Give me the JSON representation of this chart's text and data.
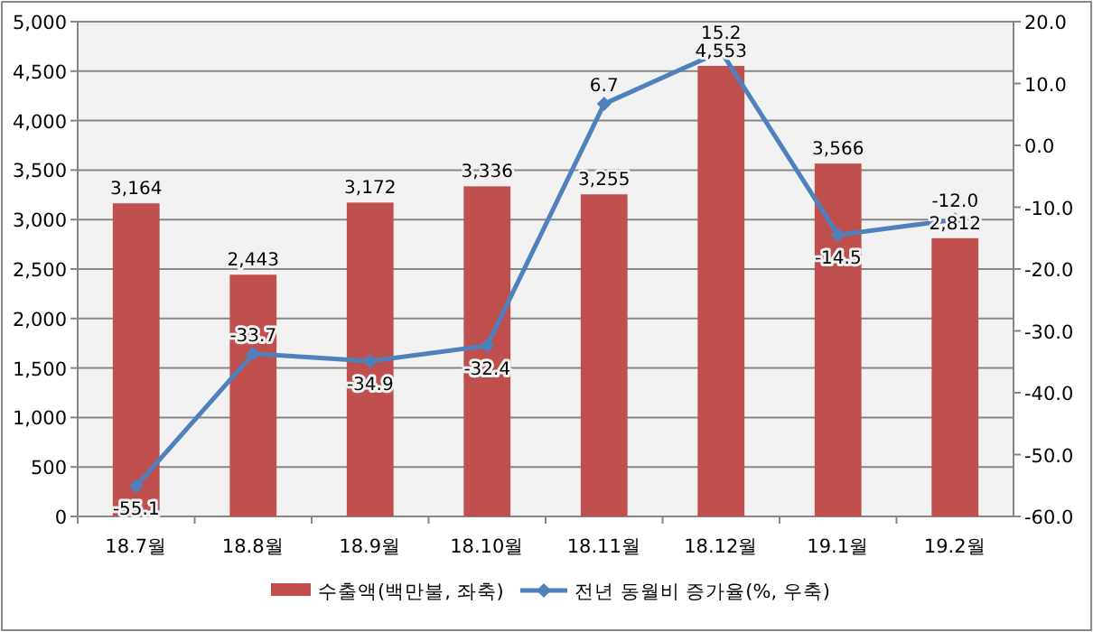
{
  "chart_data": {
    "type": "bar",
    "categories": [
      "18.7월",
      "18.8월",
      "18.9월",
      "18.10월",
      "18.11월",
      "18.12월",
      "19.1월",
      "19.2월"
    ],
    "series": [
      {
        "name": "수출액(백만불, 좌축)",
        "color": "#c0504d",
        "values": [
          3164,
          2443,
          3172,
          3336,
          3255,
          4553,
          3566,
          2812
        ],
        "value_labels": [
          "3,164",
          "2,443",
          "3,172",
          "3,336",
          "3,255",
          "4,553",
          "3,566",
          "2,812"
        ]
      },
      {
        "name": "전년 동월비 증가율(%, 우축)",
        "type": "line",
        "axis": "y2",
        "color": "#4f81bd",
        "marker": "diamond",
        "values": [
          -55.1,
          -33.7,
          -34.9,
          -32.4,
          6.7,
          15.2,
          -14.5,
          -12.0
        ],
        "value_labels": [
          "-55.1",
          "-33.7",
          "-34.9",
          "-32.4",
          "6.7",
          "15.2",
          "-14.5",
          "-12.0"
        ]
      }
    ],
    "ylim": [
      0,
      5000
    ],
    "yticks": [
      0,
      500,
      {
        "value": 1000,
        "label": "1,000"
      },
      {
        "value": 1500,
        "label": "1,500"
      },
      {
        "value": 2000,
        "label": "2,000"
      },
      {
        "value": 2500,
        "label": "2,500"
      },
      {
        "value": 3000,
        "label": "3,000"
      },
      {
        "value": 3500,
        "label": "3,500"
      },
      {
        "value": 4000,
        "label": "4,000"
      },
      {
        "value": 4500,
        "label": "4,500"
      },
      {
        "value": 5000,
        "label": "5,000"
      }
    ],
    "y2lim": [
      -60,
      20
    ],
    "y2ticks": [
      {
        "value": -60,
        "label": "-60.0"
      },
      {
        "value": -50,
        "label": "-50.0"
      },
      {
        "value": -40,
        "label": "-40.0"
      },
      {
        "value": -30,
        "label": "-30.0"
      },
      {
        "value": -20,
        "label": "-20.0"
      },
      {
        "value": -10,
        "label": "-10.0"
      },
      {
        "value": 0,
        "label": "0.0"
      },
      {
        "value": 10,
        "label": "10.0"
      },
      {
        "value": 20,
        "label": "20.0"
      }
    ],
    "grid": "y",
    "legend": "bottom"
  }
}
